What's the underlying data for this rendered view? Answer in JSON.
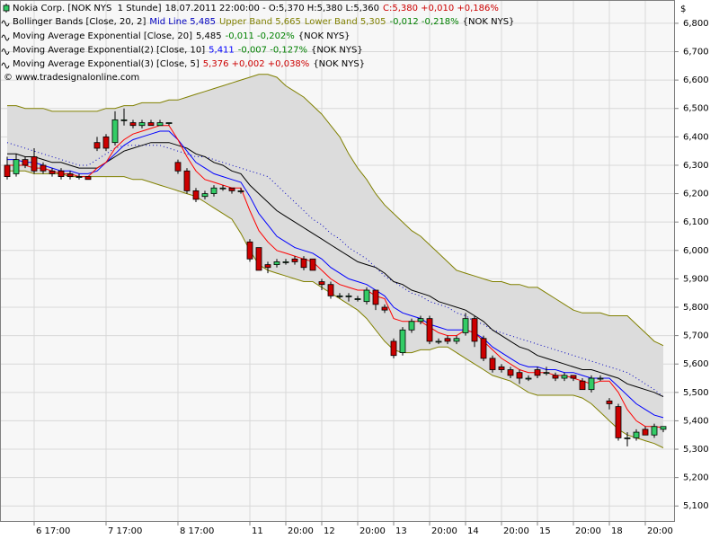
{
  "chart_data": {
    "type": "candlestick",
    "y_axis_label": "$",
    "credit": "© www.tradesignalonline.com",
    "ylim": [
      5.047,
      6.882
    ],
    "yticks": [
      {
        "value": 5.1,
        "label": "5,100"
      },
      {
        "value": 5.2,
        "label": "5,200"
      },
      {
        "value": 5.3,
        "label": "5,300"
      },
      {
        "value": 5.4,
        "label": "5,400"
      },
      {
        "value": 5.5,
        "label": "5,500"
      },
      {
        "value": 5.6,
        "label": "5,600"
      },
      {
        "value": 5.7,
        "label": "5,700"
      },
      {
        "value": 5.8,
        "label": "5,800"
      },
      {
        "value": 5.9,
        "label": "5,900"
      },
      {
        "value": 6.0,
        "label": "6,000"
      },
      {
        "value": 6.1,
        "label": "6,100"
      },
      {
        "value": 6.2,
        "label": "6,200"
      },
      {
        "value": 6.3,
        "label": "6,300"
      },
      {
        "value": 6.4,
        "label": "6,400"
      },
      {
        "value": 6.5,
        "label": "6,500"
      },
      {
        "value": 6.6,
        "label": "6,600"
      },
      {
        "value": 6.7,
        "label": "6,700"
      },
      {
        "value": 6.8,
        "label": "6,800"
      }
    ],
    "grid": true,
    "categories": [
      null,
      null,
      null,
      "6 17:00",
      null,
      null,
      null,
      null,
      null,
      null,
      null,
      "7 17:00",
      null,
      null,
      null,
      null,
      null,
      null,
      null,
      "8 17:00",
      null,
      null,
      null,
      null,
      null,
      null,
      null,
      "11",
      null,
      null,
      null,
      "20:00",
      null,
      null,
      null,
      "12",
      null,
      null,
      null,
      "20:00",
      null,
      null,
      null,
      "13",
      null,
      null,
      null,
      "20:00",
      null,
      null,
      null,
      "14",
      null,
      null,
      null,
      "20:00",
      null,
      null,
      null,
      "15",
      null,
      null,
      null,
      "20:00",
      null,
      null,
      null,
      "18",
      null,
      null,
      null,
      "20:00",
      null,
      null
    ],
    "candles": {
      "name": "Nokia Corp. [NOK NYS  1 Stunde]",
      "legend": [
        {
          "text": "18.07.2011 22:00:00 - O:5,370 H:5,380 L:5,360",
          "color": "#000000"
        },
        {
          "text": "C:5,380 +0,010 +0,186%",
          "color": "#cc0000"
        }
      ],
      "up_color": "#33cc66",
      "down_color": "#cc0000",
      "open": [
        6.3,
        6.27,
        6.32,
        6.33,
        6.3,
        6.28,
        6.28,
        6.27,
        6.26,
        6.26,
        6.38,
        6.4,
        6.38,
        6.46,
        6.45,
        6.44,
        6.45,
        6.44,
        6.45,
        6.31,
        6.28,
        6.21,
        6.19,
        6.2,
        6.22,
        6.22,
        6.21,
        6.03,
        6.01,
        5.95,
        5.95,
        5.96,
        5.97,
        5.97,
        5.97,
        5.89,
        5.88,
        5.84,
        5.84,
        5.83,
        5.82,
        5.86,
        5.8,
        5.68,
        5.64,
        5.72,
        5.75,
        5.76,
        5.68,
        5.69,
        5.68,
        5.71,
        5.76,
        5.69,
        5.62,
        5.59,
        5.58,
        5.57,
        5.55,
        5.58,
        5.57,
        5.56,
        5.55,
        5.56,
        5.54,
        5.51,
        5.55,
        5.47,
        5.45,
        5.34,
        5.34,
        5.37,
        5.35,
        5.37
      ],
      "high": [
        6.33,
        6.34,
        6.33,
        6.36,
        6.31,
        6.29,
        6.29,
        6.28,
        6.27,
        6.26,
        6.4,
        6.41,
        6.49,
        6.5,
        6.46,
        6.46,
        6.46,
        6.46,
        6.45,
        6.32,
        6.29,
        6.22,
        6.21,
        6.23,
        6.23,
        6.22,
        6.22,
        6.04,
        6.01,
        5.96,
        5.97,
        5.97,
        5.98,
        5.98,
        5.97,
        5.9,
        5.89,
        5.85,
        5.85,
        5.84,
        5.87,
        5.86,
        5.81,
        5.69,
        5.73,
        5.76,
        5.77,
        5.77,
        5.69,
        5.7,
        5.7,
        5.78,
        5.77,
        5.7,
        5.63,
        5.6,
        5.59,
        5.58,
        5.56,
        5.59,
        5.59,
        5.57,
        5.57,
        5.56,
        5.55,
        5.56,
        5.56,
        5.48,
        5.46,
        5.36,
        5.37,
        5.38,
        5.39,
        5.38
      ],
      "low": [
        6.25,
        6.26,
        6.29,
        6.27,
        6.27,
        6.26,
        6.25,
        6.25,
        6.25,
        6.25,
        6.35,
        6.35,
        6.37,
        6.44,
        6.43,
        6.43,
        6.44,
        6.44,
        6.44,
        6.27,
        6.2,
        6.17,
        6.18,
        6.19,
        6.21,
        6.2,
        6.2,
        5.96,
        5.93,
        5.92,
        5.94,
        5.95,
        5.95,
        5.93,
        5.93,
        5.86,
        5.83,
        5.83,
        5.82,
        5.82,
        5.81,
        5.79,
        5.78,
        5.62,
        5.63,
        5.71,
        5.74,
        5.67,
        5.67,
        5.67,
        5.67,
        5.7,
        5.66,
        5.61,
        5.57,
        5.57,
        5.55,
        5.53,
        5.54,
        5.55,
        5.56,
        5.54,
        5.54,
        5.54,
        5.51,
        5.5,
        5.54,
        5.44,
        5.33,
        5.31,
        5.33,
        5.35,
        5.34,
        5.36
      ],
      "close": [
        6.26,
        6.32,
        6.3,
        6.28,
        6.28,
        6.27,
        6.26,
        6.26,
        6.26,
        6.25,
        6.36,
        6.36,
        6.46,
        6.46,
        6.44,
        6.45,
        6.44,
        6.45,
        6.45,
        6.28,
        6.21,
        6.18,
        6.2,
        6.22,
        6.22,
        6.21,
        6.21,
        5.97,
        5.93,
        5.94,
        5.96,
        5.96,
        5.96,
        5.94,
        5.93,
        5.88,
        5.84,
        5.84,
        5.84,
        5.83,
        5.86,
        5.81,
        5.79,
        5.63,
        5.72,
        5.75,
        5.76,
        5.68,
        5.68,
        5.68,
        5.69,
        5.76,
        5.68,
        5.62,
        5.58,
        5.58,
        5.56,
        5.55,
        5.55,
        5.56,
        5.57,
        5.55,
        5.56,
        5.55,
        5.51,
        5.55,
        5.55,
        5.46,
        5.34,
        5.34,
        5.36,
        5.35,
        5.38,
        5.38
      ]
    },
    "bands": {
      "name": "Bollinger Bands [Close, 20, 2]",
      "fill": "#dcdcdc",
      "band_color": "#808000",
      "mid_color": "#0000c0",
      "legend": [
        {
          "text": "Mid Line 5,485",
          "color": "#0000c0"
        },
        {
          "text": "Upper Band 5,665",
          "color": "#808000"
        },
        {
          "text": "Lower Band 5,305",
          "color": "#808000"
        },
        {
          "text": "-0,012 -0,218%",
          "color": "#008000"
        },
        {
          "text": "{NOK NYS}",
          "color": "#000000"
        }
      ],
      "upper": [
        6.51,
        6.51,
        6.5,
        6.5,
        6.5,
        6.49,
        6.49,
        6.49,
        6.49,
        6.49,
        6.49,
        6.5,
        6.5,
        6.51,
        6.51,
        6.52,
        6.52,
        6.52,
        6.53,
        6.53,
        6.54,
        6.55,
        6.56,
        6.57,
        6.58,
        6.59,
        6.6,
        6.61,
        6.62,
        6.62,
        6.61,
        6.58,
        6.56,
        6.54,
        6.51,
        6.48,
        6.44,
        6.4,
        6.34,
        6.29,
        6.25,
        6.2,
        6.16,
        6.13,
        6.1,
        6.07,
        6.05,
        6.02,
        5.99,
        5.96,
        5.93,
        5.92,
        5.91,
        5.9,
        5.89,
        5.89,
        5.88,
        5.88,
        5.87,
        5.87,
        5.85,
        5.83,
        5.81,
        5.79,
        5.78,
        5.78,
        5.78,
        5.77,
        5.77,
        5.77,
        5.74,
        5.71,
        5.68,
        5.665
      ],
      "mid": [
        6.38,
        6.37,
        6.36,
        6.35,
        6.34,
        6.33,
        6.32,
        6.31,
        6.3,
        6.3,
        6.32,
        6.34,
        6.36,
        6.37,
        6.37,
        6.37,
        6.37,
        6.37,
        6.36,
        6.35,
        6.34,
        6.33,
        6.33,
        6.32,
        6.31,
        6.3,
        6.29,
        6.28,
        6.27,
        6.26,
        6.23,
        6.2,
        6.17,
        6.14,
        6.11,
        6.09,
        6.06,
        6.04,
        6.01,
        5.99,
        5.97,
        5.94,
        5.91,
        5.89,
        5.87,
        5.85,
        5.84,
        5.82,
        5.81,
        5.8,
        5.78,
        5.77,
        5.75,
        5.74,
        5.72,
        5.71,
        5.7,
        5.69,
        5.68,
        5.67,
        5.66,
        5.65,
        5.64,
        5.63,
        5.62,
        5.61,
        5.6,
        5.59,
        5.58,
        5.57,
        5.55,
        5.53,
        5.51,
        5.485
      ],
      "lower": [
        6.28,
        6.28,
        6.28,
        6.27,
        6.27,
        6.27,
        6.27,
        6.26,
        6.26,
        6.26,
        6.26,
        6.26,
        6.26,
        6.26,
        6.25,
        6.25,
        6.24,
        6.23,
        6.22,
        6.21,
        6.2,
        6.19,
        6.17,
        6.15,
        6.13,
        6.11,
        6.06,
        6.0,
        5.95,
        5.93,
        5.92,
        5.91,
        5.9,
        5.89,
        5.89,
        5.87,
        5.85,
        5.83,
        5.81,
        5.79,
        5.76,
        5.72,
        5.68,
        5.65,
        5.64,
        5.64,
        5.65,
        5.65,
        5.66,
        5.66,
        5.64,
        5.62,
        5.6,
        5.58,
        5.56,
        5.55,
        5.54,
        5.52,
        5.5,
        5.49,
        5.49,
        5.49,
        5.49,
        5.49,
        5.48,
        5.46,
        5.43,
        5.4,
        5.37,
        5.35,
        5.34,
        5.33,
        5.32,
        5.305
      ]
    },
    "series": [
      {
        "name": "Moving Average Exponential [Close, 20]",
        "color": "#000000",
        "legend": [
          {
            "text": "5,485",
            "color": "#000000"
          },
          {
            "text": "-0,011 -0,202%",
            "color": "#008000"
          },
          {
            "text": "{NOK NYS}",
            "color": "#000000"
          }
        ],
        "values": [
          6.34,
          6.34,
          6.33,
          6.33,
          6.32,
          6.31,
          6.31,
          6.3,
          6.29,
          6.29,
          6.29,
          6.31,
          6.33,
          6.35,
          6.36,
          6.37,
          6.38,
          6.38,
          6.38,
          6.37,
          6.36,
          6.34,
          6.33,
          6.31,
          6.3,
          6.28,
          6.27,
          6.23,
          6.2,
          6.17,
          6.14,
          6.12,
          6.1,
          6.08,
          6.06,
          6.04,
          6.02,
          6.0,
          5.98,
          5.96,
          5.95,
          5.94,
          5.92,
          5.89,
          5.88,
          5.86,
          5.85,
          5.84,
          5.82,
          5.81,
          5.8,
          5.79,
          5.77,
          5.75,
          5.72,
          5.7,
          5.68,
          5.66,
          5.65,
          5.63,
          5.62,
          5.61,
          5.6,
          5.59,
          5.58,
          5.58,
          5.57,
          5.56,
          5.55,
          5.53,
          5.52,
          5.51,
          5.5,
          5.485
        ]
      },
      {
        "name": "Moving Average Exponential(2) [Close, 10]",
        "color": "#0000ff",
        "legend": [
          {
            "text": "5,411",
            "color": "#0000ff"
          },
          {
            "text": "-0,007 -0,127%",
            "color": "#008000"
          },
          {
            "text": "{NOK NYS}",
            "color": "#000000"
          }
        ],
        "values": [
          6.32,
          6.32,
          6.31,
          6.31,
          6.3,
          6.29,
          6.28,
          6.28,
          6.27,
          6.27,
          6.28,
          6.31,
          6.34,
          6.37,
          6.39,
          6.4,
          6.41,
          6.42,
          6.42,
          6.39,
          6.35,
          6.31,
          6.29,
          6.27,
          6.26,
          6.25,
          6.24,
          6.19,
          6.13,
          6.09,
          6.05,
          6.03,
          6.01,
          6.0,
          5.99,
          5.97,
          5.94,
          5.92,
          5.9,
          5.89,
          5.88,
          5.86,
          5.84,
          5.8,
          5.78,
          5.77,
          5.76,
          5.74,
          5.73,
          5.72,
          5.72,
          5.72,
          5.71,
          5.69,
          5.66,
          5.64,
          5.62,
          5.6,
          5.59,
          5.59,
          5.58,
          5.58,
          5.57,
          5.57,
          5.56,
          5.55,
          5.55,
          5.55,
          5.52,
          5.49,
          5.46,
          5.44,
          5.42,
          5.411
        ]
      },
      {
        "name": "Moving Average Exponential(3) [Close, 5]",
        "color": "#ff0000",
        "legend": [
          {
            "text": "5,376 +0,002 +0,038%",
            "color": "#cc0000"
          },
          {
            "text": "{NOK NYS}",
            "color": "#000000"
          }
        ],
        "values": [
          6.3,
          6.3,
          6.3,
          6.29,
          6.29,
          6.28,
          6.27,
          6.27,
          6.26,
          6.26,
          6.29,
          6.31,
          6.36,
          6.39,
          6.41,
          6.42,
          6.43,
          6.44,
          6.44,
          6.39,
          6.33,
          6.28,
          6.25,
          6.24,
          6.23,
          6.22,
          6.22,
          6.14,
          6.07,
          6.03,
          6.0,
          5.99,
          5.98,
          5.97,
          5.96,
          5.93,
          5.9,
          5.88,
          5.87,
          5.86,
          5.86,
          5.84,
          5.83,
          5.76,
          5.75,
          5.75,
          5.75,
          5.73,
          5.71,
          5.7,
          5.7,
          5.72,
          5.71,
          5.68,
          5.65,
          5.62,
          5.6,
          5.58,
          5.57,
          5.57,
          5.57,
          5.56,
          5.56,
          5.55,
          5.54,
          5.53,
          5.54,
          5.54,
          5.5,
          5.44,
          5.4,
          5.38,
          5.38,
          5.376
        ]
      }
    ]
  }
}
